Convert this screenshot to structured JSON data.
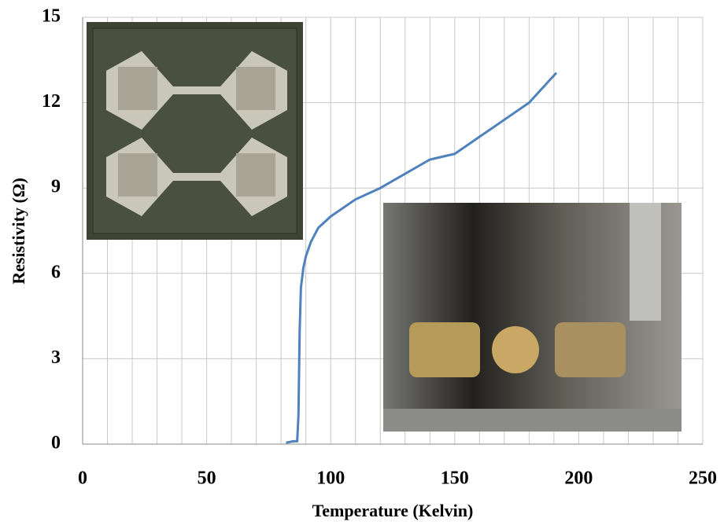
{
  "chart_data": {
    "type": "line",
    "x_label": "Temperature (Kelvin)",
    "y_label": "Resistivity (Ω)",
    "x": [
      82,
      85,
      86.5,
      87,
      87.5,
      88,
      89,
      90,
      92,
      95,
      100,
      110,
      120,
      130,
      140,
      150,
      160,
      170,
      180,
      191
    ],
    "series": [
      {
        "color": "#4f81bd",
        "values": [
          0.05,
          0.1,
          0.1,
          1.0,
          4.0,
          5.5,
          6.2,
          6.6,
          7.1,
          7.6,
          8.0,
          8.6,
          9.0,
          9.5,
          10.0,
          10.2,
          10.8,
          11.4,
          12.0,
          13.05
        ]
      }
    ],
    "xlim": [
      0,
      250
    ],
    "xticks": [
      0,
      50,
      100,
      150,
      200,
      250
    ],
    "xgrid": [
      10,
      20,
      30,
      40,
      50,
      60,
      70,
      80,
      90,
      100,
      110,
      120,
      130,
      140,
      150,
      160,
      170,
      180,
      190,
      200,
      210,
      220,
      230,
      240,
      250
    ],
    "ylim": [
      0,
      15
    ],
    "yticks": [
      0,
      3,
      6,
      9,
      12,
      15
    ],
    "grid": true
  }
}
